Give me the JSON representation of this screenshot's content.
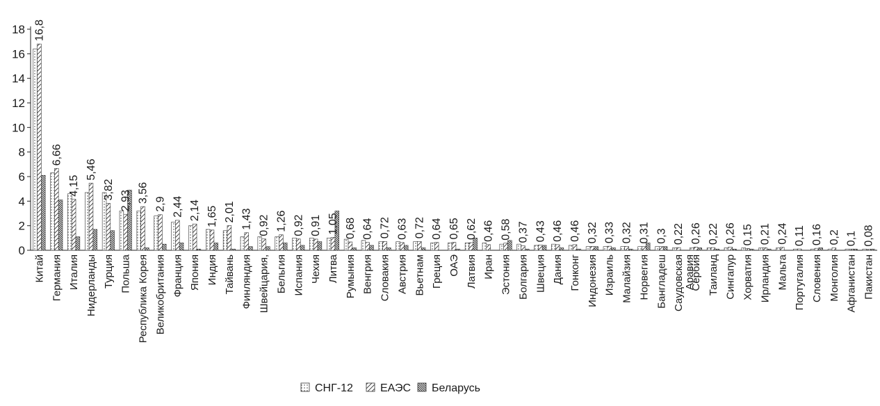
{
  "chart_data": {
    "type": "bar",
    "title": "",
    "xlabel": "",
    "ylabel": "",
    "ylim": [
      0,
      18
    ],
    "yticks": [
      0,
      2,
      4,
      6,
      8,
      10,
      12,
      14,
      16,
      18
    ],
    "grid": false,
    "legend_position": "bottom",
    "categories": [
      "Китай",
      "Германия",
      "Италия",
      "Нидерланды",
      "Турция",
      "Польша",
      "Республика Корея",
      "Великобритания",
      "Франция",
      "Япония",
      "Индия",
      "Тайвань",
      "Финляндия",
      "Швейцария,",
      "Бельгия",
      "Испания",
      "Чехия",
      "Литва",
      "Румыния",
      "Венгрия",
      "Словакия",
      "Австрия",
      "Вьетнам",
      "Греция",
      "ОАЭ",
      "Латвия",
      "Иран",
      "Эстония",
      "Болгария",
      "Швеция",
      "Дания",
      "Гонконг",
      "Индонезия",
      "Израиль",
      "Малайзия",
      "Норвегия",
      "Бангладеш",
      "Саудовская Аравия",
      "Сербия",
      "Таиланд",
      "Сингапур",
      "Хорватия",
      "Ирландия",
      "Мальта",
      "Португалия",
      "Словения",
      "Монголия",
      "Афганистан",
      "Пакистан"
    ],
    "data_labels": [
      "16,8",
      "6,66",
      "4,15",
      "5,46",
      "3,82",
      "2,93",
      "3,56",
      "2,9",
      "2,44",
      "2,14",
      "1,65",
      "2,01",
      "1,43",
      "0,92",
      "1,26",
      "0,92",
      "0,91",
      "1,05",
      "0,68",
      "0,64",
      "0,72",
      "0,63",
      "0,72",
      "0,64",
      "0,65",
      "0,62",
      "0,46",
      "0,58",
      "0,37",
      "0,43",
      "0,46",
      "0,46",
      "0,32",
      "0,33",
      "0,32",
      "0,31",
      "0,3",
      "0,22",
      "0,26",
      "0,22",
      "0,26",
      "0,15",
      "0,21",
      "0,24",
      "0,11",
      "0,16",
      "0,2",
      "0,1",
      "0,08"
    ],
    "series": [
      {
        "name": "СНГ-12",
        "pattern": "dots",
        "values": [
          16.4,
          6.3,
          4.6,
          4.7,
          4.7,
          3.2,
          3.2,
          2.8,
          2.3,
          2.0,
          1.7,
          1.6,
          1.1,
          1.1,
          1.1,
          1.0,
          1.0,
          1.0,
          0.9,
          0.8,
          0.7,
          0.7,
          0.7,
          0.6,
          0.6,
          0.6,
          0.6,
          0.5,
          0.5,
          0.4,
          0.5,
          0.4,
          0.3,
          0.3,
          0.3,
          0.3,
          0.3,
          0.2,
          0.2,
          0.2,
          0.2,
          0.2,
          0.2,
          0.2,
          0.1,
          0.1,
          0.1,
          0.1,
          0.1
        ]
      },
      {
        "name": "ЕАЭС",
        "pattern": "hatch",
        "values": [
          16.8,
          6.66,
          4.15,
          5.46,
          3.82,
          2.93,
          3.56,
          2.9,
          2.44,
          2.14,
          1.65,
          2.01,
          1.43,
          0.92,
          1.26,
          0.92,
          0.91,
          1.05,
          0.68,
          0.64,
          0.72,
          0.63,
          0.72,
          0.64,
          0.65,
          0.62,
          0.46,
          0.58,
          0.37,
          0.43,
          0.46,
          0.46,
          0.32,
          0.33,
          0.32,
          0.31,
          0.3,
          0.22,
          0.26,
          0.22,
          0.26,
          0.15,
          0.21,
          0.24,
          0.11,
          0.16,
          0.2,
          0.1,
          0.08
        ]
      },
      {
        "name": "Беларусь",
        "pattern": "dense-hatch",
        "values": [
          6.1,
          4.1,
          1.1,
          1.7,
          1.6,
          4.9,
          0.2,
          0.5,
          0.6,
          0.1,
          0.6,
          0.1,
          0.3,
          0.3,
          0.6,
          0.4,
          0.7,
          3.2,
          0.2,
          0.4,
          0.2,
          0.4,
          0.2,
          0.0,
          0.1,
          1.0,
          0.0,
          0.8,
          0.1,
          0.4,
          0.2,
          0.1,
          0.3,
          0.2,
          0.1,
          0.6,
          0.3,
          0.0,
          0.2,
          0.1,
          0.1,
          0.1,
          0.1,
          0.0,
          0.0,
          0.2,
          0.0,
          0.1,
          0.1
        ]
      }
    ]
  }
}
